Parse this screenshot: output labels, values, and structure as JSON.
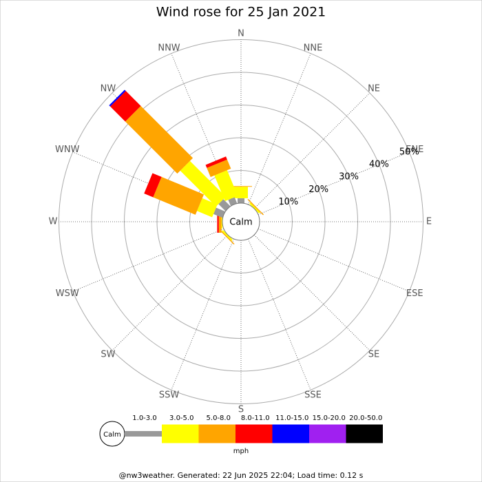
{
  "chart_data": {
    "type": "windrose",
    "title": "Wind rose for 25 Jan 2021",
    "categories": [
      "N",
      "NNE",
      "NE",
      "ENE",
      "E",
      "ESE",
      "SE",
      "SSE",
      "S",
      "SSW",
      "SW",
      "WSW",
      "W",
      "WNW",
      "NW",
      "NNW"
    ],
    "center_label": "Calm",
    "rlim": [
      0,
      50
    ],
    "rticks": [
      {
        "value": 10,
        "label": "10%"
      },
      {
        "value": 20,
        "label": "20%"
      },
      {
        "value": 30,
        "label": "30%"
      },
      {
        "value": 40,
        "label": "40%"
      },
      {
        "value": 50,
        "label": "50%"
      }
    ],
    "legend_unit": "mph",
    "series": [
      {
        "name": "1.0-3.0",
        "color": "#999999",
        "values": [
          1.5,
          0,
          0,
          0,
          0,
          0,
          0,
          0,
          0,
          0,
          0,
          0,
          0,
          3,
          3,
          2
        ]
      },
      {
        "name": "3.0-5.0",
        "color": "#ffff00",
        "values": [
          3.5,
          0,
          0.5,
          0,
          0,
          0,
          0,
          0,
          0,
          0,
          0.5,
          0,
          0.3,
          5,
          15.5,
          8.5
        ]
      },
      {
        "name": "5.0-8.0",
        "color": "#ffa500",
        "values": [
          0.2,
          0,
          0.3,
          0,
          0,
          0,
          0,
          0,
          0,
          0,
          0.3,
          0,
          0.8,
          14,
          22.5,
          3
        ]
      },
      {
        "name": "8.0-11.0",
        "color": "#ff0000",
        "values": [
          0,
          0,
          0,
          0,
          0,
          0,
          0,
          0,
          0,
          0,
          0,
          0,
          0.5,
          3,
          6.5,
          1
        ]
      },
      {
        "name": "11.0-15.0",
        "color": "#0000ff",
        "values": [
          0,
          0,
          0,
          0,
          0,
          0,
          0,
          0,
          0,
          0,
          0,
          0,
          0,
          0,
          0.5,
          0
        ]
      },
      {
        "name": "15.0-20.0",
        "color": "#a020f0",
        "values": [
          0,
          0,
          0,
          0,
          0,
          0,
          0,
          0,
          0,
          0,
          0,
          0,
          0,
          0,
          0,
          0
        ]
      },
      {
        "name": "20.0-50.0",
        "color": "#000000",
        "values": [
          0,
          0,
          0,
          0,
          0,
          0,
          0,
          0,
          0,
          0,
          0,
          0,
          0,
          0,
          0,
          0
        ]
      }
    ],
    "footer": "@nw3weather. Generated: 22 Jun 2025 22:04; Load time: 0.12 s"
  }
}
